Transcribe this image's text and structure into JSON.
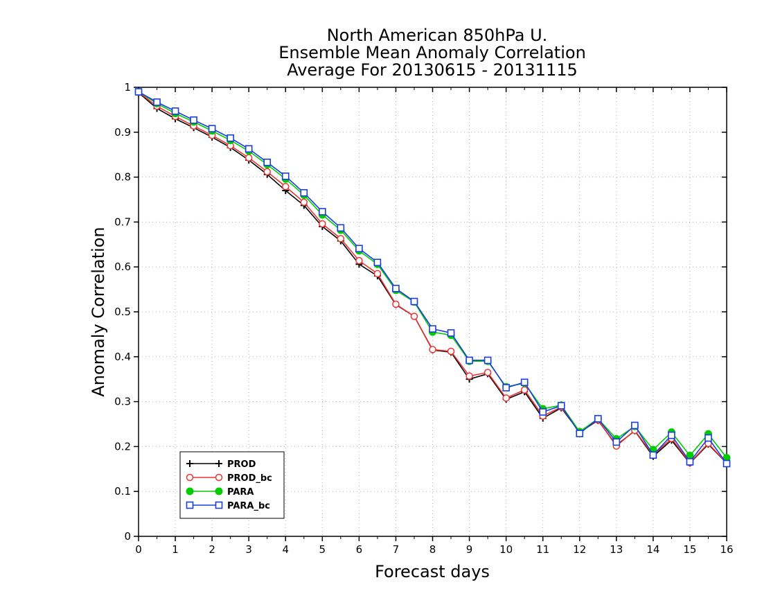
{
  "chart_data": {
    "type": "line",
    "title": [
      "North American 850hPa U.",
      "Ensemble Mean Anomaly Correlation",
      "Average For 20130615 - 20131115"
    ],
    "xlabel": "Forecast days",
    "ylabel": "Anomaly Correlation",
    "xlim": [
      0,
      16
    ],
    "ylim": [
      0,
      1
    ],
    "xticks": [
      "0",
      "1",
      "2",
      "3",
      "4",
      "5",
      "6",
      "7",
      "8",
      "9",
      "10",
      "11",
      "12",
      "13",
      "14",
      "15",
      "16"
    ],
    "yticks": [
      "0",
      "0.1",
      "0.2",
      "0.3",
      "0.4",
      "0.5",
      "0.6",
      "0.7",
      "0.8",
      "0.9",
      "1"
    ],
    "grid": true,
    "legend_position": "lower-left",
    "x": [
      0,
      0.5,
      1,
      1.5,
      2,
      2.5,
      3,
      3.5,
      4,
      4.5,
      5,
      5.5,
      6,
      6.5,
      7,
      7.5,
      8,
      8.5,
      9,
      9.5,
      10,
      10.5,
      11,
      11.5,
      12,
      12.5,
      13,
      13.5,
      14,
      14.5,
      15,
      15.5,
      16
    ],
    "series": [
      {
        "name": "PROD",
        "color": "#000000",
        "marker": "plus",
        "values": [
          0.988,
          0.953,
          0.93,
          0.91,
          0.889,
          0.866,
          0.838,
          0.806,
          0.77,
          0.737,
          0.69,
          0.658,
          0.606,
          0.58,
          0.516,
          0.49,
          0.415,
          0.41,
          0.35,
          0.362,
          0.305,
          0.322,
          0.263,
          0.286,
          0.232,
          0.258,
          0.203,
          0.235,
          0.178,
          0.214,
          0.163,
          0.205,
          0.163
        ]
      },
      {
        "name": "PROD_bc",
        "color": "#ee3333",
        "marker": "circle",
        "values": [
          0.989,
          0.958,
          0.935,
          0.914,
          0.893,
          0.87,
          0.843,
          0.812,
          0.779,
          0.744,
          0.696,
          0.663,
          0.614,
          0.585,
          0.517,
          0.49,
          0.416,
          0.412,
          0.357,
          0.365,
          0.308,
          0.326,
          0.268,
          0.288,
          0.233,
          0.259,
          0.201,
          0.236,
          0.181,
          0.218,
          0.164,
          0.207,
          0.163
        ]
      },
      {
        "name": "PARA",
        "color": "#00cc00",
        "marker": "dot",
        "values": [
          0.99,
          0.964,
          0.942,
          0.923,
          0.903,
          0.882,
          0.858,
          0.828,
          0.796,
          0.76,
          0.716,
          0.682,
          0.636,
          0.606,
          0.548,
          0.522,
          0.455,
          0.448,
          0.39,
          0.39,
          0.333,
          0.341,
          0.284,
          0.292,
          0.233,
          0.262,
          0.217,
          0.245,
          0.193,
          0.232,
          0.18,
          0.228,
          0.175
        ]
      },
      {
        "name": "PARA_bc",
        "color": "#1a3de0",
        "marker": "square",
        "values": [
          0.99,
          0.967,
          0.947,
          0.927,
          0.908,
          0.887,
          0.863,
          0.833,
          0.802,
          0.765,
          0.723,
          0.687,
          0.641,
          0.61,
          0.552,
          0.523,
          0.462,
          0.453,
          0.392,
          0.392,
          0.331,
          0.343,
          0.277,
          0.291,
          0.229,
          0.262,
          0.21,
          0.247,
          0.181,
          0.225,
          0.166,
          0.219,
          0.162
        ]
      }
    ]
  }
}
